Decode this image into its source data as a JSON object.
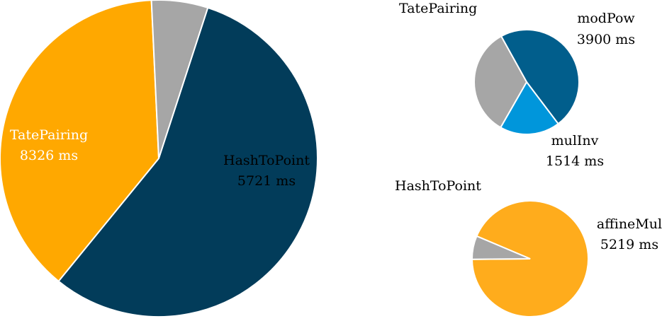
{
  "chart_data": [
    {
      "type": "pie",
      "title": "",
      "slices": [
        {
          "name": "TatePairing",
          "value": 8326,
          "value_label": "8326 ms",
          "color": "#023c5a"
        },
        {
          "name": "HashToPoint",
          "value": 5721,
          "value_label": "5721 ms",
          "color": "#ffa800"
        },
        {
          "name": "",
          "value": 855,
          "value_label": "",
          "color": "#a6a6a6"
        }
      ]
    },
    {
      "type": "pie",
      "title": "TatePairing",
      "slices": [
        {
          "name": "modPow",
          "value": 3900,
          "value_label": "3900 ms",
          "color": "#015e8c"
        },
        {
          "name": "mulInv",
          "value": 1514,
          "value_label": "1514 ms",
          "color": "#0096db"
        },
        {
          "name": "",
          "value": 2750,
          "value_label": "",
          "color": "#a6a6a6"
        }
      ]
    },
    {
      "type": "pie",
      "title": "HashToPoint",
      "slices": [
        {
          "name": "affineMul",
          "value": 5219,
          "value_label": "5219 ms",
          "color": "#ffac1c"
        },
        {
          "name": "",
          "value": 365,
          "value_label": "",
          "color": "#a6a6a6"
        }
      ]
    }
  ]
}
